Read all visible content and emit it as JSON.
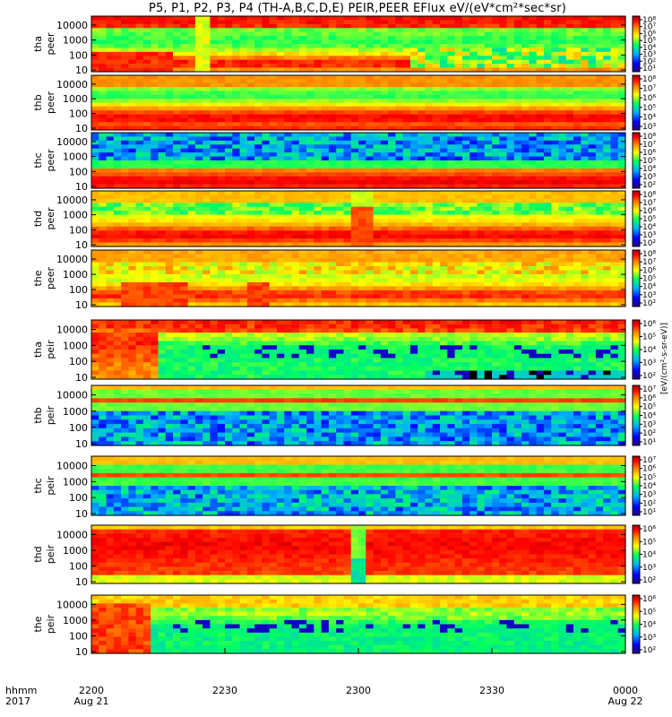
{
  "title": "P5, P1, P2, P3, P4 (TH-A,B,C,D,E) PEIR,PEER EFlux eV/(eV*cm²*sec*sr)",
  "colorbar_unit": "[eV/(cm²-s-sr-eV)]",
  "chart_data": {
    "type": "heatmap",
    "title": "P5, P1, P2, P3, P4 (TH-A,B,C,D,E) PEIR,PEER EFlux eV/(eV*cm²*sec*sr)",
    "xlabel_row1": "hhmm",
    "xlabel_row2": "2017",
    "x_ticks": [
      {
        "label": "2200",
        "sub": "Aug 21",
        "pos": 0.0
      },
      {
        "label": "2230",
        "sub": "",
        "pos": 0.25
      },
      {
        "label": "2300",
        "sub": "",
        "pos": 0.5
      },
      {
        "label": "2330",
        "sub": "",
        "pos": 0.75
      },
      {
        "label": "0000",
        "sub": "Aug 22",
        "pos": 1.0
      }
    ],
    "y_scale": "log",
    "y_range": [
      10,
      30000
    ],
    "y_ticks": [
      "10000",
      "1000",
      "100",
      "10"
    ],
    "panels": [
      {
        "label": [
          "tha",
          "peer"
        ],
        "species": "electron",
        "cb_ticks": [
          "10⁸",
          "10⁷",
          "10⁶",
          "10⁵",
          "10⁴",
          "10³",
          "10²",
          "10¹"
        ],
        "mode": "e_a"
      },
      {
        "label": [
          "thb",
          "peer"
        ],
        "species": "electron",
        "cb_ticks": [
          "10⁸",
          "10⁷",
          "10⁶",
          "10⁵",
          "10⁴",
          "10³"
        ],
        "mode": "e_b"
      },
      {
        "label": [
          "thc",
          "peer"
        ],
        "species": "electron",
        "cb_ticks": [
          "10⁸",
          "10⁷",
          "10⁶",
          "10⁵",
          "10⁴",
          "10³",
          "10²"
        ],
        "mode": "e_c"
      },
      {
        "label": [
          "thd",
          "peer"
        ],
        "species": "electron",
        "cb_ticks": [
          "10⁸",
          "10⁷",
          "10⁶",
          "10⁵",
          "10⁴",
          "10³",
          "10²"
        ],
        "mode": "e_d"
      },
      {
        "label": [
          "the",
          "peer"
        ],
        "species": "electron",
        "cb_ticks": [
          "10⁸",
          "10⁷",
          "10⁶",
          "10⁵",
          "10⁴",
          "10³",
          "10²"
        ],
        "mode": "e_e"
      },
      {
        "label": [
          "tha",
          "peir"
        ],
        "species": "ion",
        "cb_ticks": [
          "10⁶",
          "10⁵",
          "10⁴",
          "10³",
          "10²"
        ],
        "mode": "i_a"
      },
      {
        "label": [
          "thb",
          "peir"
        ],
        "species": "ion",
        "cb_ticks": [
          "10⁷",
          "10⁶",
          "10⁵",
          "10⁴",
          "10³",
          "10²",
          "10¹"
        ],
        "mode": "i_b"
      },
      {
        "label": [
          "thc",
          "peir"
        ],
        "species": "ion",
        "cb_ticks": [
          "10⁷",
          "10⁶",
          "10⁵",
          "10⁴",
          "10³",
          "10²",
          "10¹"
        ],
        "mode": "i_c"
      },
      {
        "label": [
          "thd",
          "peir"
        ],
        "species": "ion",
        "cb_ticks": [
          "10⁶",
          "10⁵",
          "10⁴",
          "10³",
          "10²"
        ],
        "mode": "i_d"
      },
      {
        "label": [
          "the",
          "peir"
        ],
        "species": "ion",
        "cb_ticks": [
          "10⁶",
          "10⁵",
          "10⁴",
          "10³",
          "10²"
        ],
        "mode": "i_e"
      }
    ]
  }
}
